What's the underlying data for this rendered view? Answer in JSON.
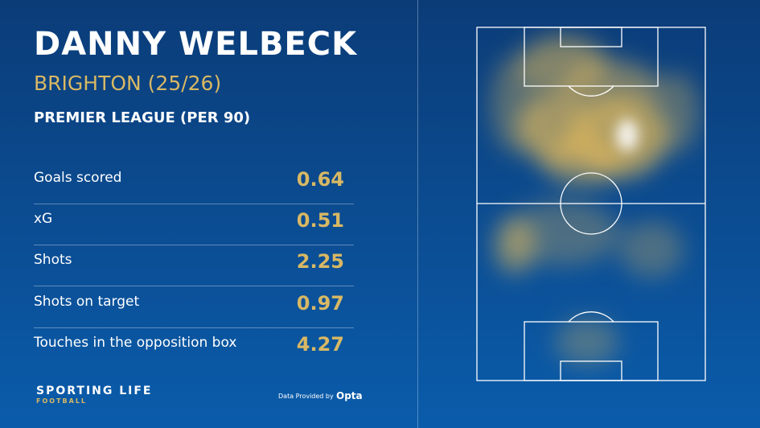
{
  "header": {
    "title": "DANNY WELBECK",
    "team": "BRIGHTON (25/26)",
    "competition": "PREMIER LEAGUE (PER 90)"
  },
  "stats": [
    {
      "label": "Goals scored",
      "value": "0.64"
    },
    {
      "label": "xG",
      "value": "0.51"
    },
    {
      "label": "Shots",
      "value": "2.25"
    },
    {
      "label": "Shots on target",
      "value": "0.97"
    },
    {
      "label": "Touches in the opposition box",
      "value": "4.27"
    }
  ],
  "footer": {
    "brand": "SPORTING LIFE",
    "brand_sub": "FOOTBALL",
    "credit": "Data Provided by",
    "provider": "Opta"
  }
}
